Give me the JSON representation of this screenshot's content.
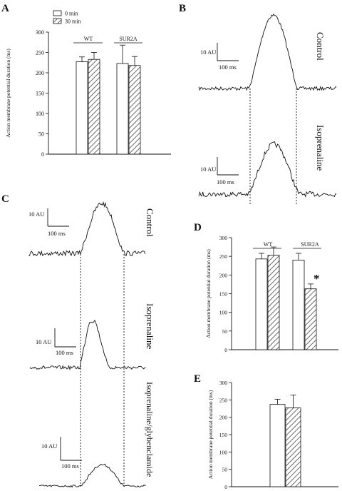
{
  "panel_labels": {
    "A": "A",
    "B": "B",
    "C": "C",
    "D": "D",
    "E": "E"
  },
  "legend": {
    "zero_min": "0 min",
    "thirty_min": "30 min"
  },
  "colors": {
    "line": "#111111",
    "bar_fill_0min": "#ffffff",
    "hatch": "#444444",
    "vline": "#111111"
  },
  "traces": {
    "scale_y": "10 AU",
    "scale_x": "100 ms",
    "b_control": "Control",
    "b_iso": "Isoprenaline",
    "c_control": "Control",
    "c_iso": "Isoprenaline",
    "c_iso_gly": "Isoprenaline/glybenclamide"
  },
  "chart_data": [
    {
      "panel": "A",
      "type": "bar",
      "ylabel": "Action membrane potential duration (ms)",
      "ylim": [
        0,
        300
      ],
      "yticks": [
        0,
        50,
        100,
        150,
        200,
        250,
        300
      ],
      "group_labels": [
        "WT",
        "SUR2A"
      ],
      "series": [
        {
          "name": "0 min",
          "values": [
            227,
            223
          ],
          "errors": [
            12,
            45
          ]
        },
        {
          "name": "30 min",
          "values": [
            233,
            218
          ],
          "errors": [
            17,
            22
          ]
        }
      ]
    },
    {
      "panel": "D",
      "type": "bar",
      "ylabel": "Action membrane potential duration (ms)",
      "ylim": [
        0,
        300
      ],
      "yticks": [
        0,
        50,
        100,
        150,
        200,
        250,
        300
      ],
      "group_labels": [
        "WT",
        "SUR2A"
      ],
      "annotation": "*",
      "series": [
        {
          "name": "0 min",
          "values": [
            243,
            240
          ],
          "errors": [
            15,
            18
          ]
        },
        {
          "name": "30 min",
          "values": [
            253,
            163
          ],
          "errors": [
            22,
            13
          ]
        }
      ]
    },
    {
      "panel": "E",
      "type": "bar",
      "ylabel": "Action membrane potential duration (ms)",
      "ylim": [
        0,
        300
      ],
      "yticks": [
        0,
        50,
        100,
        150,
        200,
        250,
        300
      ],
      "group_labels": [],
      "series": [
        {
          "name": "0 min",
          "values": [
            237
          ],
          "errors": [
            15
          ]
        },
        {
          "name": "30 min",
          "values": [
            227
          ],
          "errors": [
            37
          ]
        }
      ]
    }
  ]
}
